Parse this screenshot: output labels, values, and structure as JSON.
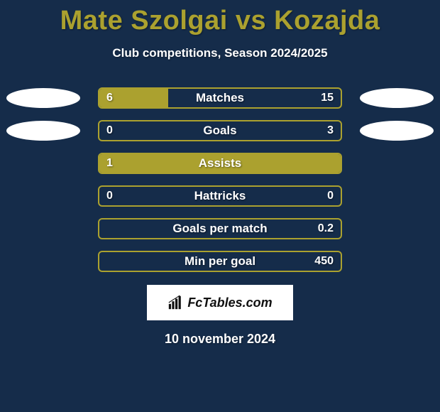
{
  "title": "Mate Szolgai vs Kozajda",
  "subtitle": "Club competitions, Season 2024/2025",
  "date": "10 november 2024",
  "logo_text": "FcTables.com",
  "colors": {
    "background": "#152c4a",
    "accent": "#aba12f",
    "text": "#ffffff",
    "ellipsis": "#ffffff",
    "logo_bg": "#ffffff",
    "logo_text": "#111111"
  },
  "bars": [
    {
      "label": "Matches",
      "left_val": "6",
      "right_val": "15",
      "fill_pct": 28.5,
      "show_right": true
    },
    {
      "label": "Goals",
      "left_val": "0",
      "right_val": "3",
      "fill_pct": 0,
      "show_right": true
    },
    {
      "label": "Assists",
      "left_val": "1",
      "right_val": "",
      "fill_pct": 100,
      "show_right": false
    },
    {
      "label": "Hattricks",
      "left_val": "0",
      "right_val": "0",
      "fill_pct": 0,
      "show_right": true
    },
    {
      "label": "Goals per match",
      "left_val": "",
      "right_val": "0.2",
      "fill_pct": 0,
      "show_right": true
    },
    {
      "label": "Min per goal",
      "left_val": "",
      "right_val": "450",
      "fill_pct": 0,
      "show_right": true
    }
  ],
  "row_has_ellipses": [
    true,
    true,
    false,
    false,
    false,
    false
  ]
}
